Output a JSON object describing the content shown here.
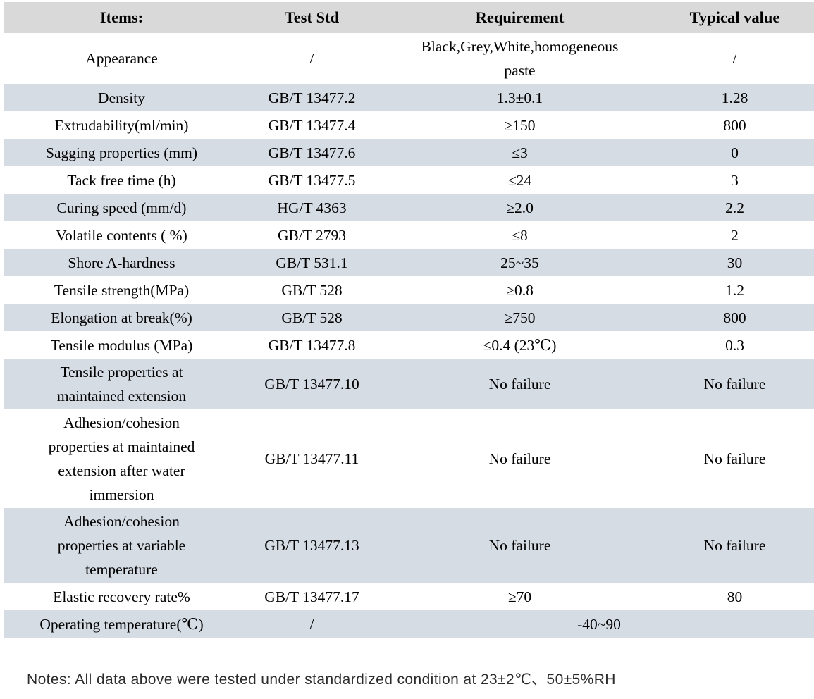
{
  "colors": {
    "header_bg": "#d9d9d9",
    "stripe_bg": "#d6dce4",
    "text": "#000000"
  },
  "table": {
    "columns": [
      "Items:",
      "Test Std",
      "Requirement",
      "Typical value"
    ],
    "rows": [
      {
        "cells": [
          "Appearance",
          "/",
          "Black,Grey,White,homogeneous\npaste",
          "/"
        ]
      },
      {
        "cells": [
          "Density",
          "GB/T 13477.2",
          "1.3±0.1",
          "1.28"
        ]
      },
      {
        "cells": [
          "Extrudability(ml/min)",
          "GB/T 13477.4",
          "≥150",
          "800"
        ]
      },
      {
        "cells": [
          "Sagging properties (mm)",
          "GB/T 13477.6",
          "≤3",
          "0"
        ]
      },
      {
        "cells": [
          "Tack free time (h)",
          "GB/T 13477.5",
          "≤24",
          "3"
        ]
      },
      {
        "cells": [
          "Curing speed (mm/d)",
          "HG/T 4363",
          "≥2.0",
          "2.2"
        ]
      },
      {
        "cells": [
          "Volatile contents ( %)",
          "GB/T 2793",
          "≤8",
          "2"
        ]
      },
      {
        "cells": [
          "Shore A-hardness",
          "GB/T 531.1",
          "25~35",
          "30"
        ]
      },
      {
        "cells": [
          "Tensile strength(MPa)",
          "GB/T 528",
          "≥0.8",
          "1.2"
        ]
      },
      {
        "cells": [
          "Elongation at break(%)",
          "GB/T 528",
          "≥750",
          "800"
        ]
      },
      {
        "cells": [
          "Tensile modulus (MPa)",
          "GB/T 13477.8",
          "≤0.4 (23℃)",
          "0.3"
        ]
      },
      {
        "cells": [
          "Tensile properties at\nmaintained extension",
          "GB/T 13477.10",
          "No failure",
          "No failure"
        ]
      },
      {
        "cells": [
          "Adhesion/cohesion\nproperties at maintained\nextension after water\nimmersion",
          "GB/T 13477.11",
          "No failure",
          "No failure"
        ]
      },
      {
        "cells": [
          "Adhesion/cohesion\nproperties at variable\ntemperature",
          "GB/T 13477.13",
          "No failure",
          "No failure"
        ]
      },
      {
        "cells": [
          "Elastic recovery rate%",
          "GB/T 13477.17",
          "≥70",
          "80"
        ]
      },
      {
        "cells": [
          "Operating temperature(℃)",
          "/",
          {
            "text": "-40~90",
            "span": 2
          }
        ]
      }
    ]
  },
  "note": "Notes: All data above were tested under standardized condition at 23±2℃、50±5%RH"
}
